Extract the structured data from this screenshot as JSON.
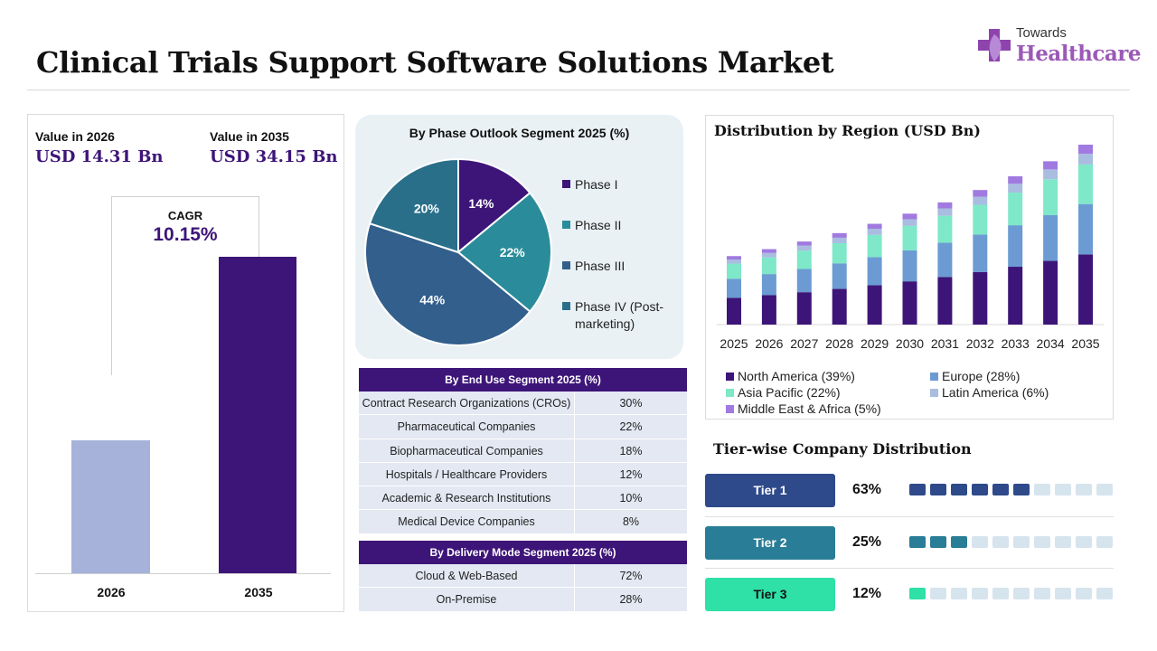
{
  "title": "Clinical Trials Support Software Solutions Market",
  "logo": {
    "top": "Towards",
    "bottom": "Healthcare"
  },
  "summary": {
    "value_2026_label": "Value in 2026",
    "value_2026": "USD 14.31 Bn",
    "value_2035_label": "Value in 2035",
    "value_2035": "USD 34.15 Bn",
    "cagr_label": "CAGR",
    "cagr_value": "10.15%"
  },
  "colors": {
    "brand_purple": "#3d1578",
    "bar_2026": "#a6b2da",
    "bar_2035": "#3d1578",
    "north_america": "#3d1578",
    "europe": "#6b9bd2",
    "asia_pacific": "#7ee8c8",
    "latin_america": "#a9bde0",
    "middle_east_africa": "#a07ae0",
    "tier1": "#2e4a8a",
    "tier2": "#2a7d96",
    "tier3": "#2fe0a7",
    "dot_off": "#d6e4ee"
  },
  "phase": {
    "title": "By Phase Outlook Segment 2025 (%)",
    "legend": [
      "Phase I",
      "Phase II",
      "Phase III",
      "Phase IV (Post-marketing)"
    ]
  },
  "end_use": {
    "title": "By End Use Segment 2025 (%)",
    "rows": [
      {
        "name": "Contract Research Organizations (CROs)",
        "value": "30%"
      },
      {
        "name": "Pharmaceutical Companies",
        "value": "22%"
      },
      {
        "name": "Biopharmaceutical Companies",
        "value": "18%"
      },
      {
        "name": "Hospitals / Healthcare Providers",
        "value": "12%"
      },
      {
        "name": "Academic & Research Institutions",
        "value": "10%"
      },
      {
        "name": "Medical Device Companies",
        "value": "8%"
      }
    ]
  },
  "delivery": {
    "title": "By Delivery Mode Segment 2025 (%)",
    "rows": [
      {
        "name": "Cloud & Web-Based",
        "value": "72%"
      },
      {
        "name": "On-Premise",
        "value": "28%"
      }
    ]
  },
  "region": {
    "title": "Distribution by Region (USD Bn)",
    "legend": [
      "North America (39%)",
      "Europe (28%)",
      "Asia Pacific (22%)",
      "Latin America (6%)",
      "Middle East & Africa (5%)"
    ]
  },
  "tier": {
    "title": "Tier-wise Company Distribution",
    "rows": [
      {
        "label": "Tier 1",
        "pct": "63%",
        "filled": 6
      },
      {
        "label": "Tier 2",
        "pct": "25%",
        "filled": 3
      },
      {
        "label": "Tier 3",
        "pct": "12%",
        "filled": 1
      }
    ],
    "dots_total": 10
  },
  "chart_data": [
    {
      "type": "bar",
      "categories": [
        "2026",
        "2035"
      ],
      "values": [
        14.31,
        34.15
      ],
      "title": "",
      "xlabel": "",
      "ylabel": ""
    },
    {
      "type": "pie",
      "title": "By Phase Outlook Segment 2025 (%)",
      "labels": [
        "Phase I",
        "Phase II",
        "Phase III",
        "Phase IV (Post-marketing)"
      ],
      "values": [
        14,
        22,
        44,
        20
      ],
      "data_labels": [
        "14%",
        "22%",
        "44%",
        "20%"
      ],
      "colors": [
        "#3d1578",
        "#2a8c9a",
        "#325f8c",
        "#2a6f8a"
      ],
      "legend": "right"
    },
    {
      "type": "bar",
      "stacked": true,
      "title": "Distribution by Region (USD Bn)",
      "categories": [
        "2025",
        "2026",
        "2027",
        "2028",
        "2029",
        "2030",
        "2031",
        "2032",
        "2033",
        "2034",
        "2035"
      ],
      "totals": [
        13.0,
        14.31,
        15.76,
        17.36,
        19.12,
        21.06,
        23.2,
        25.55,
        28.15,
        31.0,
        34.15
      ],
      "series": [
        {
          "name": "North America (39%)",
          "values": [
            5.07,
            5.58,
            6.15,
            6.77,
            7.46,
            8.21,
            9.05,
            9.96,
            10.98,
            12.09,
            13.32
          ]
        },
        {
          "name": "Europe (28%)",
          "values": [
            3.64,
            4.01,
            4.41,
            4.86,
            5.35,
            5.9,
            6.5,
            7.15,
            7.88,
            8.68,
            9.56
          ]
        },
        {
          "name": "Asia Pacific (22%)",
          "values": [
            2.86,
            3.15,
            3.47,
            3.82,
            4.21,
            4.63,
            5.1,
            5.62,
            6.19,
            6.82,
            7.51
          ]
        },
        {
          "name": "Latin America (6%)",
          "values": [
            0.78,
            0.86,
            0.95,
            1.04,
            1.15,
            1.26,
            1.39,
            1.53,
            1.69,
            1.86,
            2.05
          ]
        },
        {
          "name": "Middle East & Africa (5%)",
          "values": [
            0.65,
            0.72,
            0.79,
            0.87,
            0.96,
            1.05,
            1.16,
            1.28,
            1.41,
            1.55,
            1.71
          ]
        }
      ],
      "legend": "bottom"
    }
  ]
}
